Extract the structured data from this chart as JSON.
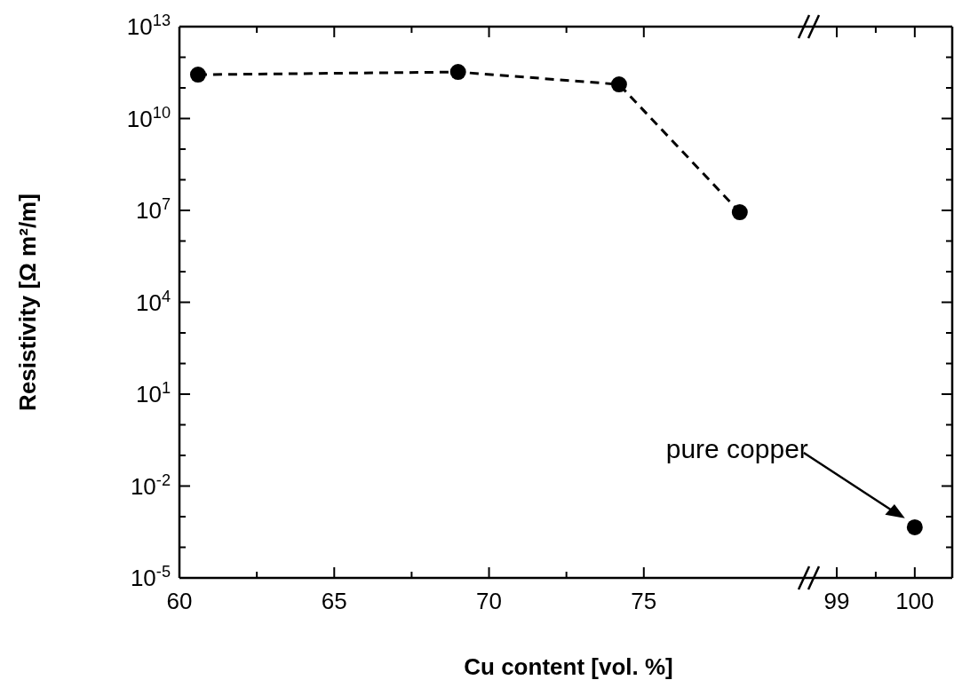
{
  "chart_data": [
    {
      "type": "line",
      "xlabel": "Cu content [vol. %]",
      "ylabel": "Resistivity [Ω m²/m]",
      "log": "y",
      "marker": "circle",
      "line_style": "dashed",
      "x": [
        60.6,
        69.0,
        74.2,
        78.1
      ],
      "series": [
        {
          "color": "#000000",
          "values": [
            270000000000.0,
            330000000000.0,
            130000000000.0,
            8700000.0
          ]
        }
      ],
      "xlim": [
        60,
        80.4
      ],
      "xticks": [
        60,
        65,
        70,
        75
      ],
      "ylim": [
        1e-05,
        10000000000000.0
      ],
      "yticks": [
        {
          "value": 1e-05,
          "label": "10$^{-5}$"
        },
        {
          "value": 0.0001,
          "label": null
        },
        {
          "value": 0.001,
          "label": null
        },
        {
          "value": 0.01,
          "label": "10$^{-2}$"
        },
        {
          "value": 0.1,
          "label": null
        },
        {
          "value": 1,
          "label": null
        },
        {
          "value": 10,
          "label": "10$^{1}$"
        },
        {
          "value": 100,
          "label": null
        },
        {
          "value": 1000,
          "label": null
        },
        {
          "value": 10000.0,
          "label": "10$^{4}$"
        },
        {
          "value": 100000.0,
          "label": null
        },
        {
          "value": 1000000.0,
          "label": null
        },
        {
          "value": 10000000.0,
          "label": "10$^{7}$"
        },
        {
          "value": 100000000.0,
          "label": null
        },
        {
          "value": 1000000000.0,
          "label": null
        },
        {
          "value": 10000000000.0,
          "label": "10$^{10}$"
        },
        {
          "value": 100000000000.0,
          "label": null
        },
        {
          "value": 1000000000000.0,
          "label": null
        },
        {
          "value": 10000000000000.0,
          "label": "10$^{13}$"
        }
      ]
    },
    {
      "type": "scatter",
      "log": "y",
      "marker": "circle",
      "tick_labels": "x",
      "x": [
        100
      ],
      "series": [
        {
          "color": "#000000",
          "values": [
            0.00045
          ]
        }
      ],
      "xlim": [
        98.67,
        100.48
      ],
      "xticks": [
        99,
        100
      ],
      "ylim": [
        1e-05,
        10000000000000.0
      ],
      "yticks": [
        {
          "value": 1e-05,
          "label": null
        },
        {
          "value": 0.0001,
          "label": null
        },
        {
          "value": 0.001,
          "label": null
        },
        {
          "value": 0.01,
          "label": null
        },
        {
          "value": 0.1,
          "label": null
        },
        {
          "value": 1,
          "label": null
        },
        {
          "value": 10,
          "label": null
        },
        {
          "value": 100,
          "label": null
        },
        {
          "value": 1000,
          "label": null
        },
        {
          "value": 10000.0,
          "label": null
        },
        {
          "value": 100000.0,
          "label": null
        },
        {
          "value": 1000000.0,
          "label": null
        },
        {
          "value": 10000000.0,
          "label": null
        },
        {
          "value": 100000000.0,
          "label": null
        },
        {
          "value": 1000000000.0,
          "label": null
        },
        {
          "value": 10000000000.0,
          "label": null
        },
        {
          "value": 100000000000.0,
          "label": null
        },
        {
          "value": 1000000000000.0,
          "label": null
        },
        {
          "value": 10000000000000.0,
          "label": null
        }
      ],
      "annotations": [
        "pure copper"
      ]
    }
  ]
}
